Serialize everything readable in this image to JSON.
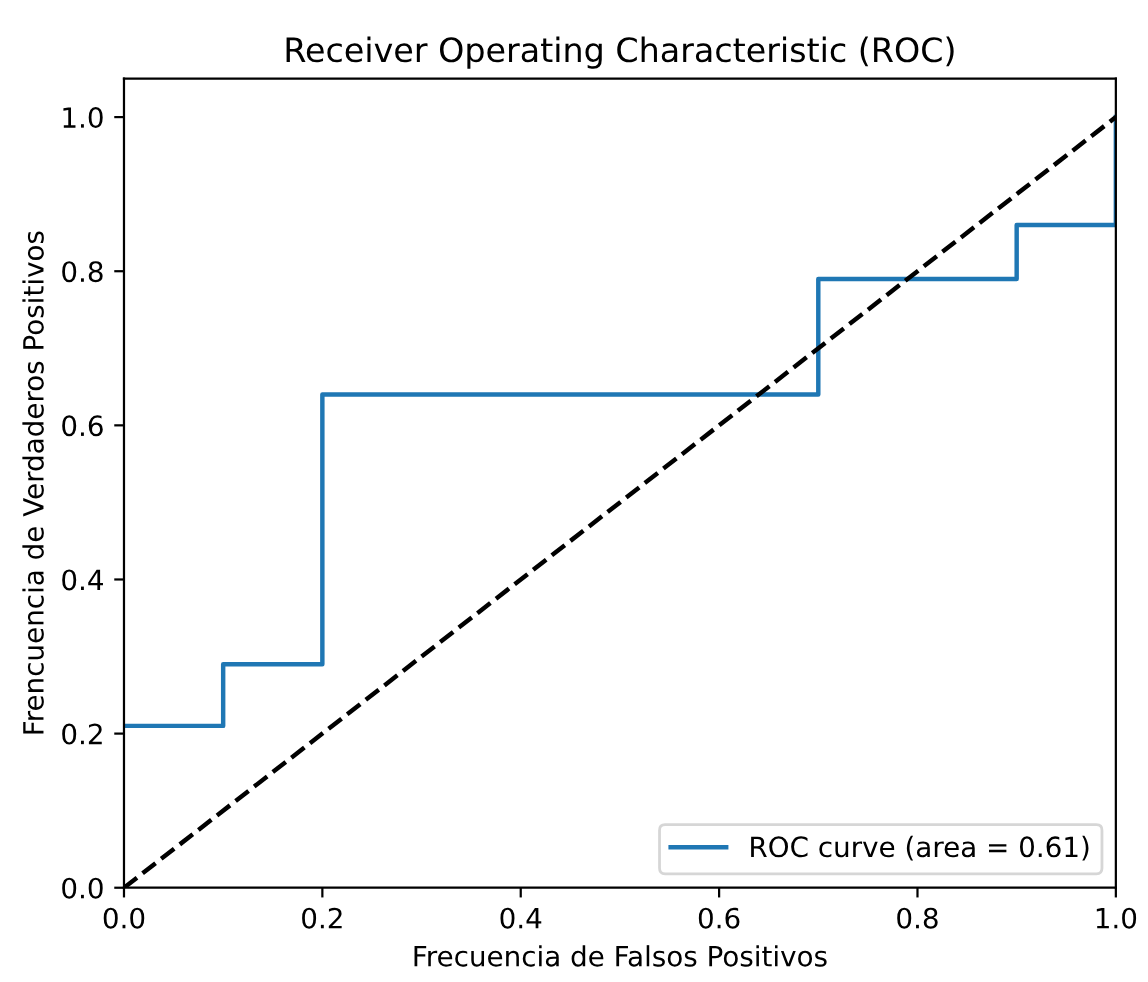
{
  "chart_data": {
    "type": "line",
    "title": "Receiver Operating Characteristic (ROC)",
    "xlabel": "Frecuencia de Falsos Positivos",
    "ylabel": "Frencuencia de Verdaderos Positivos",
    "series": [
      {
        "name": "ROC curve (area = 0.61)",
        "color": "#1f77b4",
        "line_style": "solid",
        "x": [
          0,
          0.1,
          0.1,
          0.2,
          0.2,
          0.7,
          0.7,
          0.9,
          0.9,
          1,
          1
        ],
        "values": [
          0.21,
          0.21,
          0.29,
          0.29,
          0.64,
          0.64,
          0.79,
          0.79,
          0.86,
          0.86,
          1
        ]
      },
      {
        "color": "#000000",
        "line_style": "dashed",
        "x": [
          0,
          1
        ],
        "values": [
          0,
          1
        ]
      }
    ],
    "xlim": [
      0,
      1
    ],
    "ylim": [
      0,
      1.05
    ],
    "xticks": [
      {
        "value": 0,
        "label": "0.0"
      },
      0.2,
      0.4,
      0.6,
      0.8,
      {
        "value": 1,
        "label": "1.0"
      }
    ],
    "yticks": [
      {
        "value": 0,
        "label": "0.0"
      },
      0.2,
      0.4,
      0.6,
      0.8,
      {
        "value": 1,
        "label": "1.0"
      }
    ],
    "legend": "lower right",
    "grid": false,
    "marker": "none"
  }
}
